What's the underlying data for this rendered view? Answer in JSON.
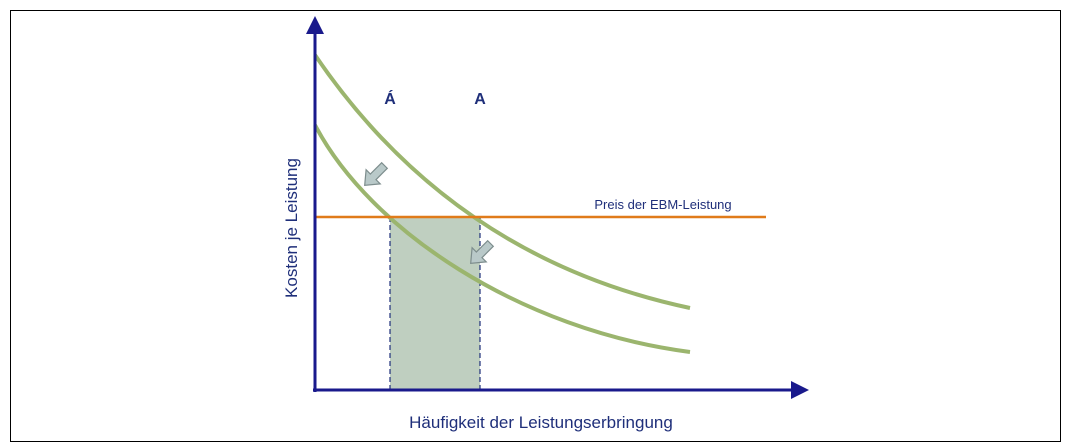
{
  "axes": {
    "y_label": "Kosten je Leistung",
    "x_label": "Häufigkeit der Leistungserbringung"
  },
  "points": {
    "a_prime": "Á",
    "a": "A"
  },
  "price_line": {
    "label": "Preis der EBM-Leistung"
  }
}
